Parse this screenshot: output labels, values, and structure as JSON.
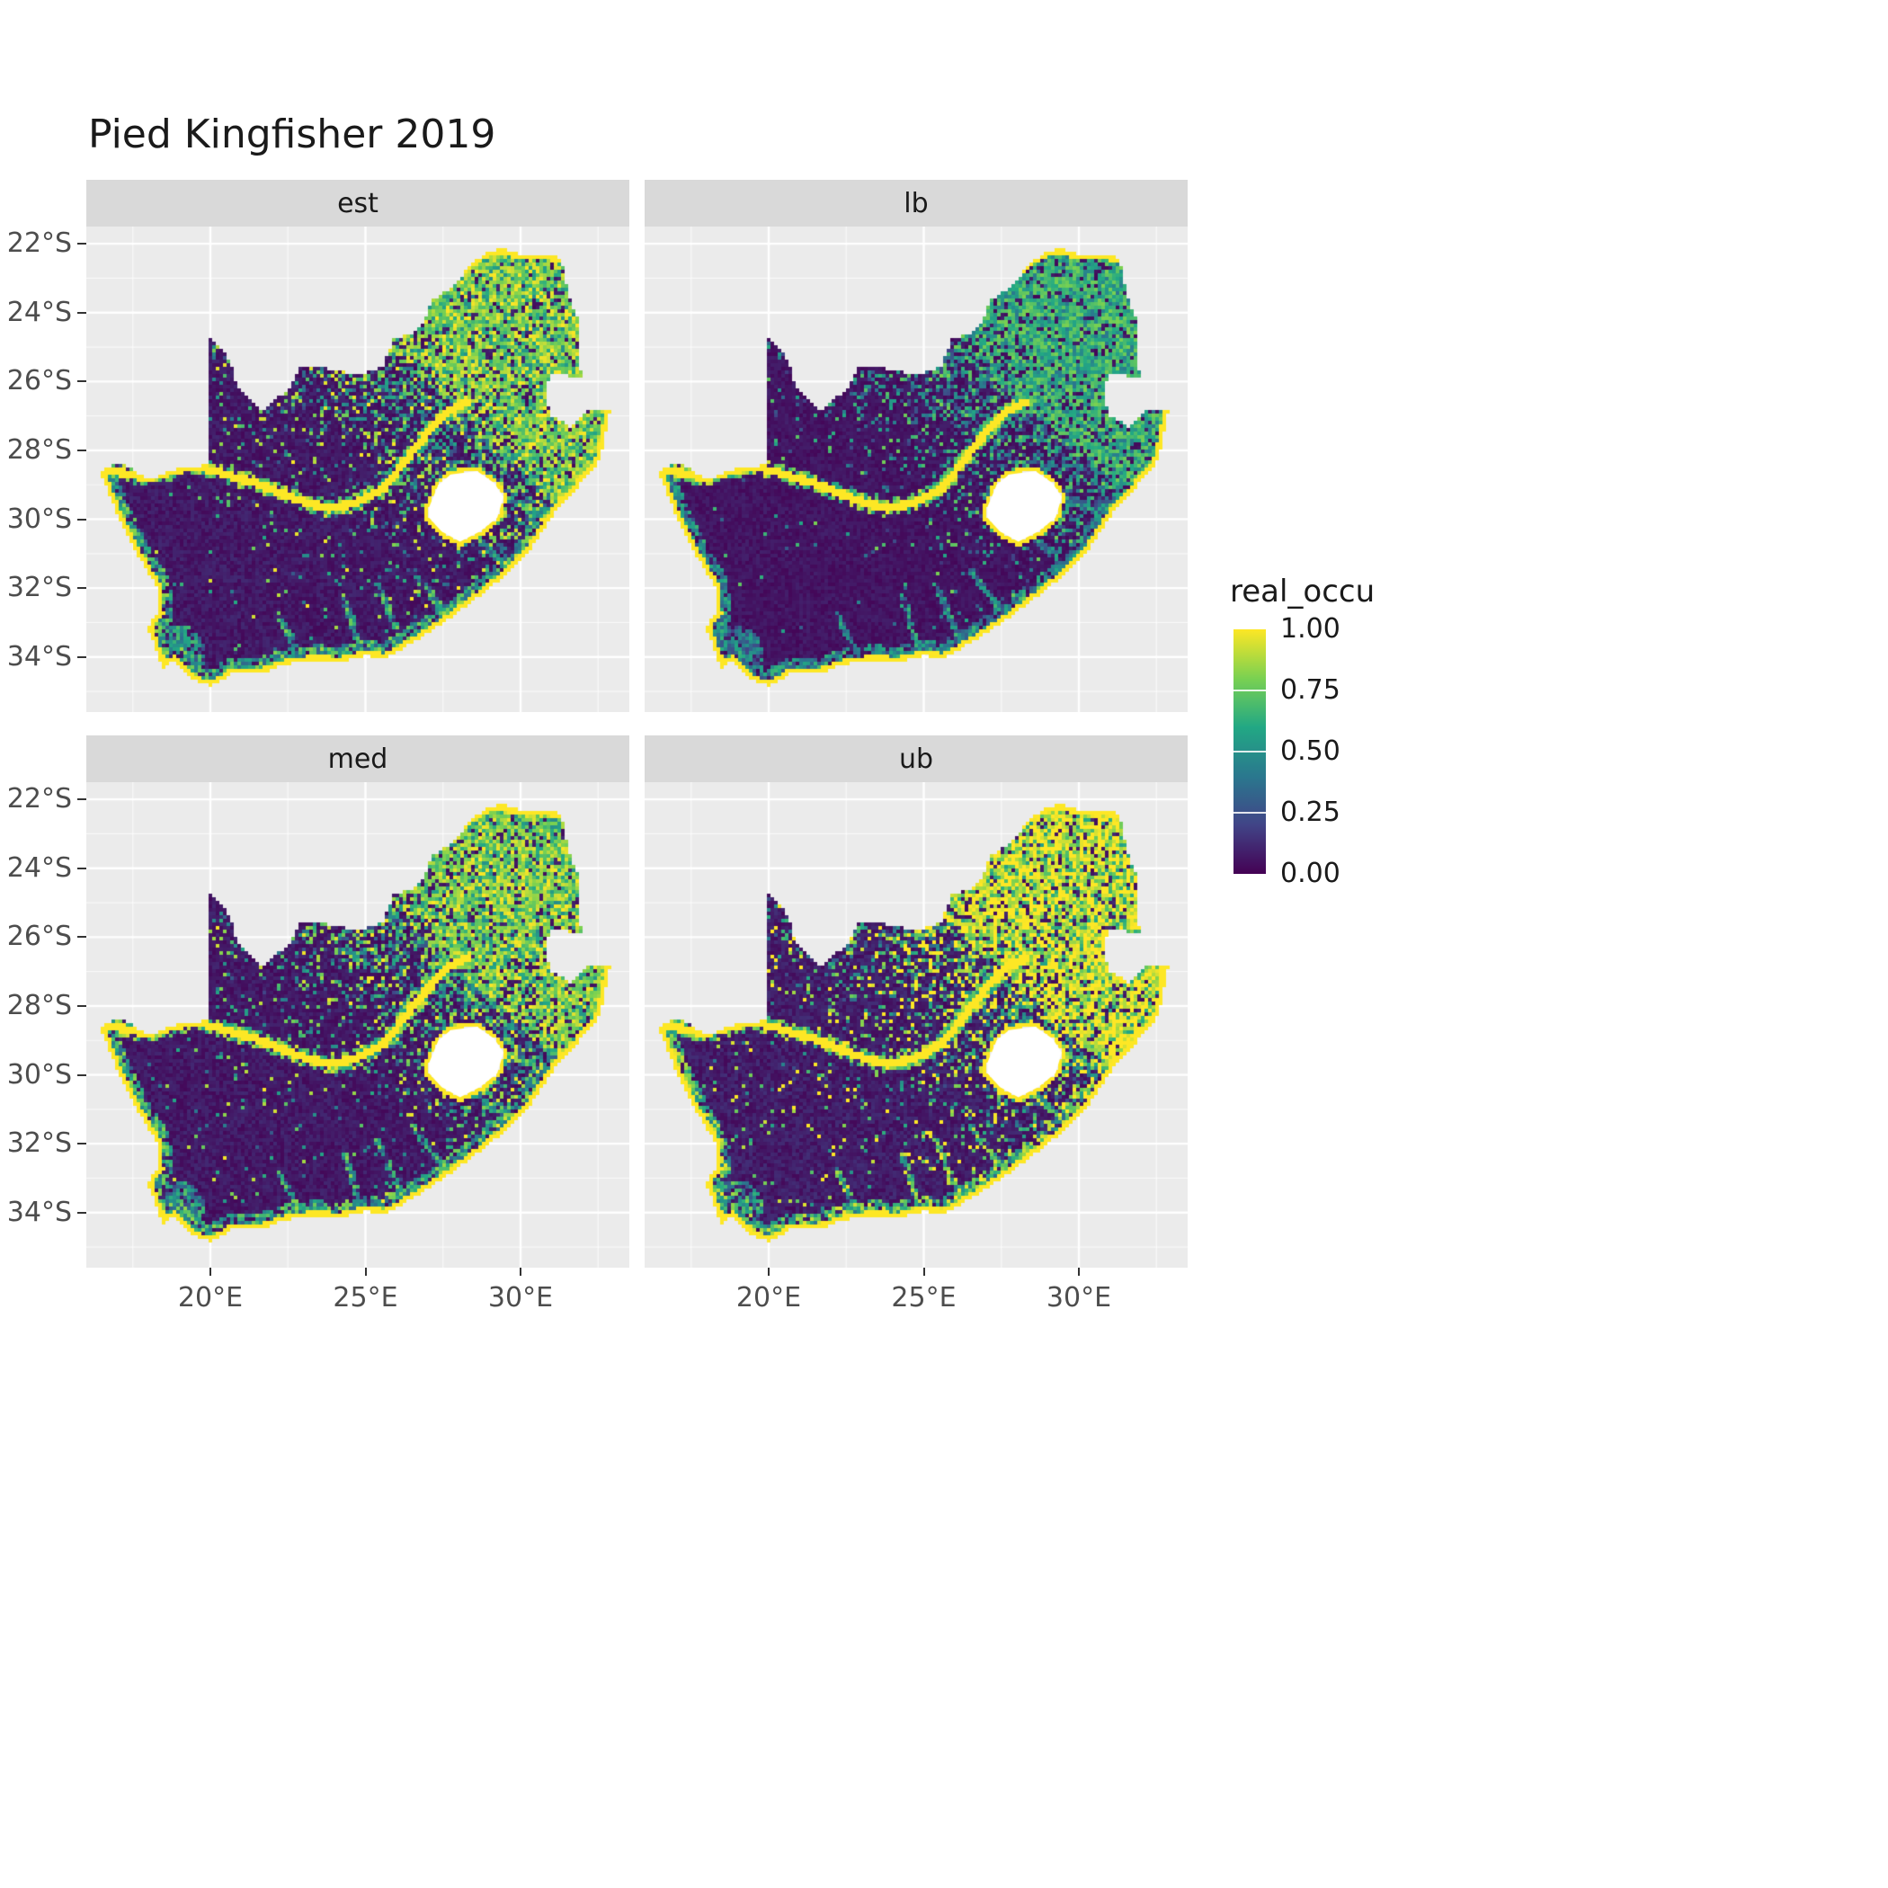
{
  "title": "Pied Kingfisher 2019",
  "facets": [
    {
      "label": "est"
    },
    {
      "label": "lb"
    },
    {
      "label": "med"
    },
    {
      "label": "ub"
    }
  ],
  "axes": {
    "y_ticks": [
      "22°S",
      "24°S",
      "26°S",
      "28°S",
      "30°S",
      "32°S",
      "34°S"
    ],
    "x_ticks": [
      "20°E",
      "25°E",
      "30°E"
    ]
  },
  "legend": {
    "title": "real_occu",
    "labels": [
      "1.00",
      "0.75",
      "0.50",
      "0.25",
      "0.00"
    ],
    "breaks": [
      1.0,
      0.75,
      0.5,
      0.25,
      0.0
    ]
  },
  "colors": {
    "panel_background": "#ebebeb",
    "strip_background": "#d9d9d9",
    "grid_line": "#ffffff",
    "axis_text": "#4d4d4d",
    "viridis_low": "#440154",
    "viridis_mid": "#21918c",
    "viridis_high": "#fde725",
    "lesotho_hole": "#ffffff"
  },
  "chart_data": {
    "type": "heatmap",
    "title": "Pied Kingfisher 2019",
    "facets": [
      "est",
      "lb",
      "med",
      "ub"
    ],
    "variable": "real_occu",
    "value_range": [
      0,
      1
    ],
    "legend_breaks": [
      1.0,
      0.75,
      0.5,
      0.25,
      0.0
    ],
    "colormap": "viridis",
    "region": "South Africa (Lesotho excluded as white hole)",
    "x_axis": {
      "ticks": [
        "20°E",
        "25°E",
        "30°E"
      ],
      "lon_range": [
        16.0,
        33.5
      ]
    },
    "y_axis": {
      "ticks": [
        "22°S",
        "24°S",
        "26°S",
        "28°S",
        "30°S",
        "32°S",
        "34°S"
      ],
      "lat_range": [
        -35.6,
        -21.5
      ]
    },
    "pattern": "Raster occupancy maps: high values (yellow, ~1.0) along the entire coastline, along the Orange/Vaal and Limpopo river corridors, around the Lesotho border and across the north-east (Gauteng, Limpopo, Mpumalanga, KwaZulu-Natal); near-zero values (dark purple) across the central and western interior; lb panel is darkest, ub panel is brightest, est and med intermediate."
  }
}
